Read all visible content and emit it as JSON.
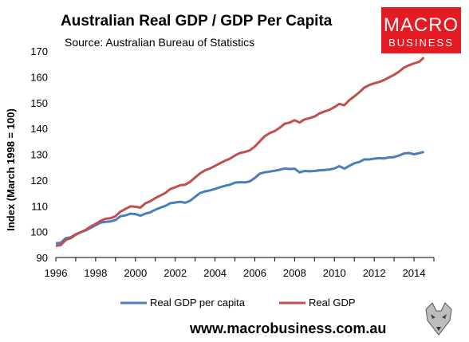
{
  "title": "Australian Real GDP / GDP Per Capita",
  "subtitle": "Source: Australian Bureau of Statistics",
  "logo": {
    "line1": "MACRO",
    "line2": "BUSINESS",
    "color": "#e41b23"
  },
  "website": "www.macrobusiness.com.au",
  "chart_data": {
    "type": "line",
    "ylabel": "Index (March 1998 = 100)",
    "xlim": [
      1996,
      2015
    ],
    "ylim": [
      90,
      170
    ],
    "xticks": [
      1996,
      1998,
      2000,
      2002,
      2004,
      2006,
      2008,
      2010,
      2012,
      2014
    ],
    "yticks": [
      90,
      100,
      110,
      120,
      130,
      140,
      150,
      160,
      170
    ],
    "legend_position": "bottom",
    "series": [
      {
        "name": "Real GDP per capita",
        "color": "#4a7ebb",
        "points": [
          [
            1996.0,
            95.5
          ],
          [
            1996.25,
            95.7
          ],
          [
            1996.5,
            97.5
          ],
          [
            1996.75,
            97.8
          ],
          [
            1997.0,
            99.0
          ],
          [
            1997.25,
            99.8
          ],
          [
            1997.5,
            100.5
          ],
          [
            1997.75,
            101.5
          ],
          [
            1998.0,
            102.5
          ],
          [
            1998.25,
            103.5
          ],
          [
            1998.5,
            103.8
          ],
          [
            1998.75,
            104.0
          ],
          [
            1999.0,
            104.5
          ],
          [
            1999.25,
            106.0
          ],
          [
            1999.5,
            106.3
          ],
          [
            1999.75,
            107.0
          ],
          [
            2000.0,
            106.8
          ],
          [
            2000.25,
            106.2
          ],
          [
            2000.5,
            107.0
          ],
          [
            2000.75,
            107.5
          ],
          [
            2001.0,
            108.5
          ],
          [
            2001.25,
            109.3
          ],
          [
            2001.5,
            110.0
          ],
          [
            2001.75,
            111.0
          ],
          [
            2002.0,
            111.3
          ],
          [
            2002.25,
            111.6
          ],
          [
            2002.5,
            111.2
          ],
          [
            2002.75,
            112.0
          ],
          [
            2003.0,
            113.5
          ],
          [
            2003.25,
            115.0
          ],
          [
            2003.5,
            115.6
          ],
          [
            2003.75,
            116.0
          ],
          [
            2004.0,
            116.6
          ],
          [
            2004.25,
            117.2
          ],
          [
            2004.5,
            117.8
          ],
          [
            2004.75,
            118.2
          ],
          [
            2005.0,
            119.0
          ],
          [
            2005.25,
            119.2
          ],
          [
            2005.5,
            119.1
          ],
          [
            2005.75,
            119.5
          ],
          [
            2006.0,
            120.8
          ],
          [
            2006.25,
            122.5
          ],
          [
            2006.5,
            123.0
          ],
          [
            2006.75,
            123.3
          ],
          [
            2007.0,
            123.6
          ],
          [
            2007.25,
            124.0
          ],
          [
            2007.5,
            124.5
          ],
          [
            2007.75,
            124.3
          ],
          [
            2008.0,
            124.4
          ],
          [
            2008.25,
            123.0
          ],
          [
            2008.5,
            123.5
          ],
          [
            2008.75,
            123.4
          ],
          [
            2009.0,
            123.5
          ],
          [
            2009.25,
            123.8
          ],
          [
            2009.5,
            123.9
          ],
          [
            2009.75,
            124.1
          ],
          [
            2010.0,
            124.5
          ],
          [
            2010.25,
            125.4
          ],
          [
            2010.5,
            124.4
          ],
          [
            2010.75,
            125.5
          ],
          [
            2011.0,
            126.5
          ],
          [
            2011.25,
            127.0
          ],
          [
            2011.5,
            128.0
          ],
          [
            2011.75,
            128.0
          ],
          [
            2012.0,
            128.3
          ],
          [
            2012.25,
            128.5
          ],
          [
            2012.5,
            128.4
          ],
          [
            2012.75,
            128.8
          ],
          [
            2013.0,
            128.9
          ],
          [
            2013.25,
            129.5
          ],
          [
            2013.5,
            130.3
          ],
          [
            2013.75,
            130.5
          ],
          [
            2014.0,
            130.0
          ],
          [
            2014.25,
            130.4
          ],
          [
            2014.5,
            130.9
          ]
        ]
      },
      {
        "name": "Real GDP",
        "color": "#c0504d",
        "points": [
          [
            1996.0,
            94.5
          ],
          [
            1996.25,
            94.8
          ],
          [
            1996.5,
            96.8
          ],
          [
            1996.75,
            97.5
          ],
          [
            1997.0,
            98.8
          ],
          [
            1997.25,
            99.8
          ],
          [
            1997.5,
            100.7
          ],
          [
            1997.75,
            102.0
          ],
          [
            1998.0,
            103.0
          ],
          [
            1998.25,
            104.2
          ],
          [
            1998.5,
            105.0
          ],
          [
            1998.75,
            105.2
          ],
          [
            1999.0,
            106.0
          ],
          [
            1999.25,
            107.8
          ],
          [
            1999.5,
            108.8
          ],
          [
            1999.75,
            109.8
          ],
          [
            2000.0,
            109.7
          ],
          [
            2000.25,
            109.3
          ],
          [
            2000.5,
            111.0
          ],
          [
            2000.75,
            111.8
          ],
          [
            2001.0,
            113.0
          ],
          [
            2001.25,
            114.0
          ],
          [
            2001.5,
            115.0
          ],
          [
            2001.75,
            116.5
          ],
          [
            2002.0,
            117.2
          ],
          [
            2002.25,
            118.0
          ],
          [
            2002.5,
            118.2
          ],
          [
            2002.75,
            119.3
          ],
          [
            2003.0,
            121.0
          ],
          [
            2003.25,
            122.6
          ],
          [
            2003.5,
            123.8
          ],
          [
            2003.75,
            124.5
          ],
          [
            2004.0,
            125.5
          ],
          [
            2004.25,
            126.5
          ],
          [
            2004.5,
            127.5
          ],
          [
            2004.75,
            128.3
          ],
          [
            2005.0,
            129.5
          ],
          [
            2005.25,
            130.5
          ],
          [
            2005.5,
            130.9
          ],
          [
            2005.75,
            131.5
          ],
          [
            2006.0,
            133.0
          ],
          [
            2006.25,
            135.0
          ],
          [
            2006.5,
            137.0
          ],
          [
            2006.75,
            138.2
          ],
          [
            2007.0,
            139.0
          ],
          [
            2007.25,
            140.3
          ],
          [
            2007.5,
            141.8
          ],
          [
            2007.75,
            142.3
          ],
          [
            2008.0,
            143.2
          ],
          [
            2008.25,
            142.3
          ],
          [
            2008.5,
            143.5
          ],
          [
            2008.75,
            144.0
          ],
          [
            2009.0,
            144.6
          ],
          [
            2009.25,
            145.8
          ],
          [
            2009.5,
            146.6
          ],
          [
            2009.75,
            147.2
          ],
          [
            2010.0,
            148.3
          ],
          [
            2010.25,
            149.5
          ],
          [
            2010.5,
            149.0
          ],
          [
            2010.75,
            151.0
          ],
          [
            2011.0,
            152.4
          ],
          [
            2011.25,
            154.0
          ],
          [
            2011.5,
            155.8
          ],
          [
            2011.75,
            156.8
          ],
          [
            2012.0,
            157.5
          ],
          [
            2012.25,
            158.0
          ],
          [
            2012.5,
            158.8
          ],
          [
            2012.75,
            159.8
          ],
          [
            2013.0,
            160.8
          ],
          [
            2013.25,
            162.0
          ],
          [
            2013.5,
            163.6
          ],
          [
            2013.75,
            164.5
          ],
          [
            2014.0,
            165.2
          ],
          [
            2014.25,
            165.8
          ],
          [
            2014.5,
            167.5
          ]
        ]
      }
    ]
  }
}
